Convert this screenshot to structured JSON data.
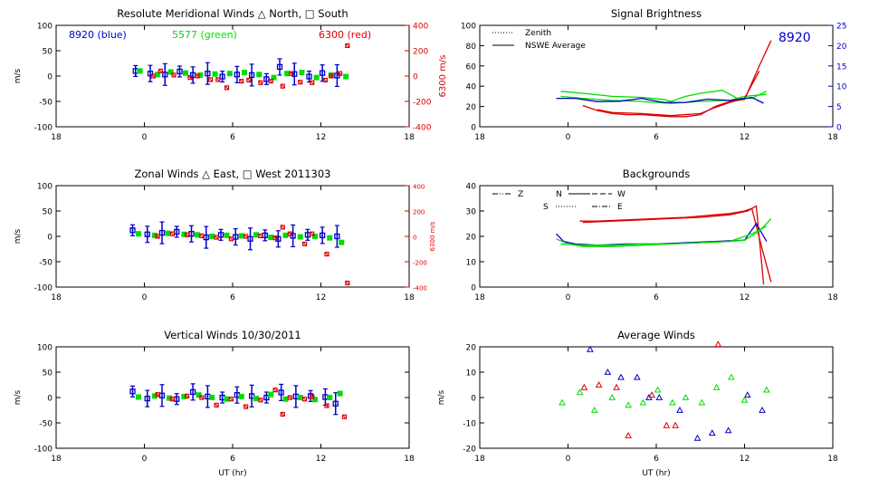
{
  "colors": {
    "blue": "#0000cc",
    "green": "#00dd00",
    "red": "#dd0000",
    "axis": "#000000"
  },
  "chart_data": [
    {
      "id": "meridional",
      "type": "scatter",
      "title": "Resolute Meridional Winds △ North, □ South",
      "ylabel": "m/s",
      "ylabel_right": "6300 m/s",
      "xlim": [
        -6,
        18
      ],
      "xticks": [
        "18",
        "0",
        "6",
        "12",
        "18"
      ],
      "ylim": [
        -100,
        100
      ],
      "yticks": [
        "100",
        "50",
        "0",
        "-50",
        "-100"
      ],
      "y2lim": [
        -400,
        400
      ],
      "y2ticks": [
        "400",
        "200",
        "0",
        "-200",
        "-400"
      ],
      "legend_labels": [
        {
          "text": "8920 (blue)",
          "color": "blue"
        },
        {
          "text": "5577 (green)",
          "color": "green"
        },
        {
          "text": "6300 (red)",
          "color": "red"
        }
      ],
      "series": [
        {
          "color": "blue",
          "errorbars": true,
          "x": [
            -0.6,
            0.4,
            1.4,
            2.4,
            3.3,
            4.3,
            5.3,
            6.3,
            7.3,
            8.3,
            9.2,
            10.2,
            11.2,
            12.1,
            13.1
          ],
          "y": [
            10,
            5,
            3,
            9,
            2,
            5,
            -1,
            3,
            2,
            -6,
            18,
            4,
            -1,
            6,
            1
          ]
        },
        {
          "color": "green",
          "x": [
            -0.3,
            0.9,
            1.8,
            2.8,
            3.8,
            4.8,
            5.8,
            6.8,
            7.8,
            8.8,
            9.7,
            10.7,
            11.7,
            12.7,
            13.7
          ],
          "y": [
            10,
            3,
            8,
            6,
            2,
            4,
            5,
            7,
            3,
            -3,
            5,
            7,
            -3,
            2,
            -1
          ]
        },
        {
          "color": "red",
          "x": [
            0.6,
            1.1,
            2.0,
            3.1,
            3.6,
            4.5,
            5.0,
            5.6,
            6.6,
            7.1,
            7.9,
            8.6,
            9.4,
            10.0,
            10.6,
            11.4,
            12.3,
            12.7,
            13.3,
            13.8
          ],
          "y": [
            0,
            10,
            2,
            -3,
            0,
            -7,
            -7,
            -23,
            -10,
            -8,
            -13,
            -10,
            -20,
            5,
            -12,
            -13,
            -8,
            0,
            5,
            60
          ]
        }
      ]
    },
    {
      "id": "brightness",
      "type": "line",
      "title": "Signal Brightness",
      "xlim": [
        -6,
        18
      ],
      "xticks": [
        "18",
        "0",
        "6",
        "12",
        "18"
      ],
      "ylim": [
        0,
        100
      ],
      "yticks": [
        "100",
        "80",
        "60",
        "40",
        "20",
        "0"
      ],
      "y2lim": [
        0,
        25
      ],
      "y2ticks": [
        "25",
        "20",
        "15",
        "10",
        "5",
        "0"
      ],
      "legend": [
        {
          "label": "Zenith",
          "style": "dotted"
        },
        {
          "label": "NSWE Average",
          "style": "solid"
        }
      ],
      "annotation": "8920",
      "series": [
        {
          "color": "green",
          "x": [
            -0.5,
            1,
            3,
            5,
            6.5,
            7,
            8,
            9,
            10.5,
            11.5,
            12.5,
            13.5
          ],
          "y": [
            35,
            33,
            30,
            29,
            27,
            25,
            30,
            33,
            36,
            28,
            28,
            35
          ]
        },
        {
          "color": "green",
          "x": [
            -0.5,
            1,
            3,
            5,
            7,
            9,
            11,
            12,
            13.5
          ],
          "y": [
            30,
            28,
            26,
            25,
            23,
            25,
            26,
            30,
            32
          ]
        },
        {
          "color": "red",
          "x": [
            1,
            2,
            3,
            4,
            5,
            6,
            7,
            8,
            9,
            10,
            11,
            12,
            13,
            13.8
          ],
          "y": [
            21,
            16,
            13,
            12,
            12,
            11,
            10,
            10,
            12,
            20,
            25,
            27,
            60,
            85
          ]
        },
        {
          "color": "red",
          "x": [
            2,
            3,
            5,
            7,
            9,
            10,
            11,
            12,
            13
          ],
          "y": [
            17,
            14,
            13,
            11,
            13,
            19,
            24,
            28,
            55
          ]
        },
        {
          "color": "blue",
          "axis": "right",
          "x": [
            -0.8,
            0.5,
            2,
            3.5,
            5,
            6.5,
            8,
            9.5,
            11,
            12.5,
            13.3
          ],
          "y": [
            7,
            7,
            6.2,
            6.3,
            7,
            6,
            6,
            6.8,
            6.5,
            7.2,
            5.8
          ]
        }
      ]
    },
    {
      "id": "zonal",
      "type": "scatter",
      "title": "Zonal Winds △ East, □ West 2011303",
      "ylabel": "m/s",
      "ylabel_right": "6300 m/s",
      "xlim": [
        -6,
        18
      ],
      "xticks": [
        "18",
        "0",
        "6",
        "12",
        "18"
      ],
      "ylim": [
        -100,
        100
      ],
      "yticks": [
        "100",
        "50",
        "0",
        "-50",
        "-100"
      ],
      "y2lim": [
        -400,
        400
      ],
      "y2ticks": [
        "400",
        "200",
        "0",
        "-200",
        "-400"
      ],
      "series": [
        {
          "color": "blue",
          "errorbars": true,
          "x": [
            -0.8,
            0.2,
            1.2,
            2.2,
            3.2,
            4.2,
            5.2,
            6.2,
            7.2,
            8.2,
            9.1,
            10.1,
            11.1,
            12.1,
            13.1
          ],
          "y": [
            12,
            4,
            7,
            9,
            5,
            -2,
            3,
            -1,
            -5,
            2,
            -5,
            1,
            3,
            2,
            0
          ]
        },
        {
          "color": "green",
          "x": [
            -0.4,
            0.7,
            1.6,
            2.7,
            3.6,
            4.6,
            5.6,
            6.6,
            7.6,
            8.6,
            9.6,
            10.6,
            11.6,
            12.6,
            13.4
          ],
          "y": [
            5,
            2,
            6,
            4,
            3,
            0,
            2,
            1,
            3,
            -2,
            2,
            -1,
            0,
            -3,
            -12
          ]
        },
        {
          "color": "red",
          "x": [
            0.9,
            1.9,
            2.9,
            3.9,
            4.9,
            5.9,
            6.9,
            7.9,
            8.9,
            9.4,
            9.9,
            10.9,
            11.4,
            12.4,
            13.8
          ],
          "y": [
            0,
            5,
            3,
            1,
            -2,
            -5,
            0,
            1,
            -3,
            18,
            5,
            -15,
            5,
            -35,
            -92
          ]
        }
      ]
    },
    {
      "id": "backgrounds",
      "type": "line",
      "title": "Backgrounds",
      "xlim": [
        -6,
        18
      ],
      "xticks": [
        "18",
        "0",
        "6",
        "12",
        "18"
      ],
      "ylim": [
        0,
        40
      ],
      "yticks": [
        "40",
        "30",
        "20",
        "10",
        "0"
      ],
      "legend": [
        {
          "label": "Z",
          "style": "dashdotdot"
        },
        {
          "label": "N",
          "style": "solid"
        },
        {
          "label": "W",
          "style": "dashed"
        },
        {
          "label": "S",
          "style": "dotted"
        },
        {
          "label": "E",
          "style": "dashdot"
        }
      ],
      "series": [
        {
          "color": "red",
          "x": [
            0.8,
            2,
            4,
            6,
            8,
            9,
            10,
            11,
            12,
            12.5,
            13.2,
            13.8
          ],
          "y": [
            26,
            26,
            26.5,
            27,
            27.5,
            28,
            28.5,
            29,
            30,
            31,
            15,
            2
          ]
        },
        {
          "color": "red",
          "x": [
            1,
            3,
            5,
            7,
            9,
            11,
            12.2,
            12.8,
            13.3
          ],
          "y": [
            25.5,
            26,
            26.5,
            27,
            27.5,
            28.5,
            30,
            32,
            1
          ]
        },
        {
          "color": "blue",
          "x": [
            -0.8,
            -0.3,
            0.5,
            2,
            4,
            6,
            8,
            10,
            12,
            12.8,
            13.5
          ],
          "y": [
            21,
            18,
            17,
            16.5,
            17,
            17,
            17.5,
            18,
            18.5,
            25,
            18
          ]
        },
        {
          "color": "green",
          "x": [
            -0.8,
            0,
            1,
            3,
            5,
            7,
            9,
            11,
            12,
            13,
            13.8
          ],
          "y": [
            19,
            17,
            16,
            16,
            16.5,
            17,
            17.5,
            18,
            18.5,
            22,
            27
          ]
        },
        {
          "color": "green",
          "x": [
            -0.5,
            1,
            3,
            5,
            7,
            9,
            11,
            12.5,
            13.5
          ],
          "y": [
            17,
            16.5,
            16.5,
            17,
            17,
            17.5,
            18,
            21,
            24
          ]
        }
      ]
    },
    {
      "id": "vertical",
      "type": "scatter",
      "title": "Vertical Winds 10/30/2011",
      "ylabel": "m/s",
      "xlabel": "UT (hr)",
      "xlim": [
        -6,
        18
      ],
      "xticks": [
        "18",
        "0",
        "6",
        "12",
        "18"
      ],
      "ylim": [
        -100,
        100
      ],
      "yticks": [
        "100",
        "50",
        "0",
        "-50",
        "-100"
      ],
      "series": [
        {
          "color": "blue",
          "errorbars": true,
          "x": [
            -0.8,
            0.2,
            1.2,
            2.2,
            3.3,
            4.3,
            5.3,
            6.3,
            7.3,
            8.3,
            9.3,
            10.3,
            11.3,
            12.3,
            13.0
          ],
          "y": [
            12,
            -2,
            4,
            -3,
            11,
            2,
            0,
            5,
            3,
            0,
            10,
            2,
            3,
            1,
            -12
          ]
        },
        {
          "color": "green",
          "x": [
            -0.4,
            0.7,
            1.7,
            2.7,
            3.7,
            4.6,
            5.6,
            6.6,
            7.6,
            8.6,
            9.6,
            10.6,
            11.6,
            12.6,
            13.3
          ],
          "y": [
            1,
            3,
            -1,
            2,
            5,
            0,
            -3,
            2,
            -2,
            6,
            -3,
            0,
            -4,
            0,
            8
          ]
        },
        {
          "color": "red",
          "x": [
            0.9,
            1.9,
            2.9,
            3.9,
            4.9,
            5.9,
            6.9,
            7.9,
            8.9,
            9.4,
            9.9,
            10.9,
            11.4,
            12.4,
            13.6
          ],
          "y": [
            6,
            -3,
            3,
            0,
            -15,
            -3,
            -18,
            -5,
            15,
            -33,
            0,
            -3,
            2,
            -16,
            -38
          ]
        }
      ]
    },
    {
      "id": "average",
      "type": "scatter",
      "title": "Average Winds",
      "ylabel": "m/s",
      "xlabel": "UT (hr)",
      "xlim": [
        -6,
        18
      ],
      "xticks": [
        "18",
        "0",
        "6",
        "12",
        "18"
      ],
      "ylim": [
        -20,
        20
      ],
      "yticks": [
        "20",
        "10",
        "0",
        "-10",
        "-20"
      ],
      "series": [
        {
          "color": "blue",
          "marker": "triangle",
          "x": [
            1.5,
            2.7,
            3.6,
            4.7,
            5.5,
            6.2,
            7.6,
            8.8,
            9.8,
            10.9,
            12.2,
            13.2
          ],
          "y": [
            19,
            10,
            8,
            8,
            0,
            0,
            -5,
            -16,
            -14,
            -13,
            1,
            -5
          ]
        },
        {
          "color": "green",
          "marker": "triangle",
          "x": [
            -0.4,
            0.8,
            1.8,
            3.0,
            4.1,
            5.1,
            6.1,
            7.1,
            8.0,
            9.1,
            10.1,
            11.1,
            12.0,
            13.5
          ],
          "y": [
            -2,
            2,
            -5,
            0,
            -3,
            -2,
            3,
            -2,
            0,
            -2,
            4,
            8,
            -1,
            3
          ]
        },
        {
          "color": "red",
          "marker": "triangle",
          "x": [
            1.1,
            2.1,
            3.3,
            4.1,
            5.7,
            6.7,
            7.3,
            10.2
          ],
          "y": [
            4,
            5,
            4,
            -15,
            1,
            -11,
            -11,
            21
          ]
        }
      ]
    }
  ]
}
